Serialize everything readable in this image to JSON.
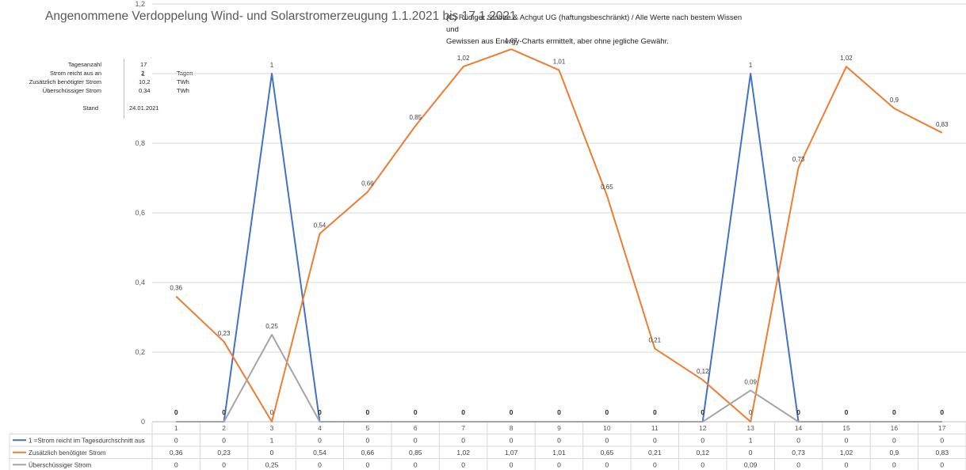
{
  "title": "Angenommene Verdoppelung Wind- und Solarstromerzeugung 1.1.2021 bis 17.1.2021",
  "copyright_lines": [
    "(C) Rüdiger Stobbe & Achgut UG (haftungsbeschränkt) / Alle Werte nach bestem Wissen und",
    "Gewissen aus Energy-Charts ermittelt, aber ohne jegliche Gewähr."
  ],
  "info": {
    "rows": [
      {
        "label": "Tagesanzahl",
        "value": "17",
        "unit": ""
      },
      {
        "label": "Strom reicht aus an",
        "value": "2",
        "unit": "Tagen"
      },
      {
        "label": "Zusätzlich benötigter Strom",
        "value": "10,2",
        "unit": "TWh"
      },
      {
        "label": "Überschüssiger Strom",
        "value": "0,34",
        "unit": "TWh"
      }
    ],
    "stand_label": "Stand",
    "stand_value": "24.01.2021"
  },
  "chart_data": {
    "type": "line",
    "categories": [
      "1",
      "2",
      "3",
      "4",
      "5",
      "6",
      "7",
      "8",
      "9",
      "10",
      "11",
      "12",
      "13",
      "14",
      "15",
      "16",
      "17"
    ],
    "y_ticks": [
      "0",
      "0,2",
      "0,4",
      "0,6",
      "0,8",
      "1",
      "1,2"
    ],
    "ylim": [
      0,
      1.2
    ],
    "grid": true,
    "legend_position": "data-table-below",
    "series": [
      {
        "name": "1 =Strom reicht im Tagesdurchschnitt aus",
        "color": "#4472C4",
        "values": [
          0,
          0,
          1,
          0,
          0,
          0,
          0,
          0,
          0,
          0,
          0,
          0,
          1,
          0,
          0,
          0,
          0
        ],
        "labels": [
          "0",
          "0",
          "1",
          "0",
          "0",
          "0",
          "0",
          "0",
          "0",
          "0",
          "0",
          "0",
          "1",
          "0",
          "0",
          "0",
          "0"
        ]
      },
      {
        "name": "Zusätzlich benötigter Strom",
        "color": "#ED7D31",
        "values": [
          0.36,
          0.23,
          0,
          0.54,
          0.66,
          0.85,
          1.02,
          1.07,
          1.01,
          0.65,
          0.21,
          0.12,
          0,
          0.73,
          1.02,
          0.9,
          0.83
        ],
        "labels": [
          "0,36",
          "0,23",
          "0",
          "0,54",
          "0,66",
          "0,85",
          "1,02",
          "1,07",
          "1,01",
          "0,65",
          "0,21",
          "0,12",
          "0",
          "0,73",
          "1,02",
          "0,9",
          "0,83"
        ]
      },
      {
        "name": "Überschüssiger Strom",
        "color": "#A5A5A5",
        "values": [
          0,
          0,
          0.25,
          0,
          0,
          0,
          0,
          0,
          0,
          0,
          0,
          0,
          0.09,
          0,
          0,
          0,
          0
        ],
        "labels": [
          "0",
          "0",
          "0,25",
          "0",
          "0",
          "0",
          "0",
          "0",
          "0",
          "0",
          "0",
          "0",
          "0,09",
          "0",
          "0",
          "0",
          "0"
        ]
      }
    ]
  }
}
